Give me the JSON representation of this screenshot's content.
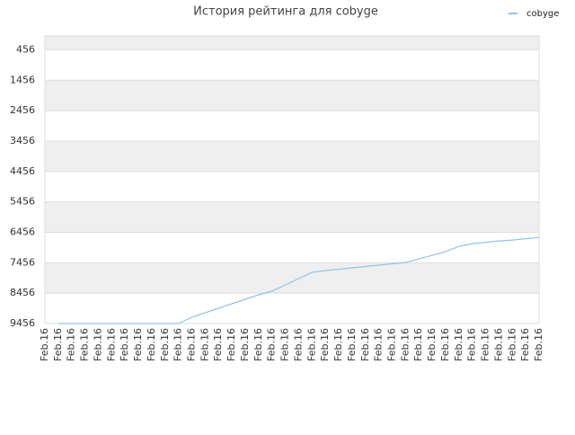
{
  "chart_data": {
    "type": "line",
    "title": "История рейтинга для cobyge",
    "categories": [
      "Feb.16",
      "Feb.16",
      "Feb.16",
      "Feb.16",
      "Feb.16",
      "Feb.16",
      "Feb.16",
      "Feb.16",
      "Feb.16",
      "Feb.16",
      "Feb.16",
      "Feb.16",
      "Feb.16",
      "Feb.16",
      "Feb.16",
      "Feb.16",
      "Feb.16",
      "Feb.16",
      "Feb.16",
      "Feb.16",
      "Feb.16",
      "Feb.16",
      "Feb.16",
      "Feb.16",
      "Feb.16",
      "Feb.16",
      "Feb.16",
      "Feb.16",
      "Feb.16",
      "Feb.16",
      "Feb.16",
      "Feb.16",
      "Feb.16",
      "Feb.16",
      "Feb.16",
      "Feb.16",
      "Feb.16",
      "Feb.16"
    ],
    "series": [
      {
        "name": "cobyge",
        "color": "#8cc4f0",
        "values": [
          null,
          9456,
          9456,
          9456,
          9456,
          9456,
          9456,
          9456,
          9456,
          9456,
          9456,
          9248,
          9100,
          8953,
          8805,
          8658,
          8510,
          8392,
          8186,
          7979,
          7773,
          7714,
          7670,
          7625,
          7581,
          7536,
          7492,
          7448,
          7330,
          7212,
          7094,
          6917,
          6829,
          6784,
          6740,
          6710,
          6666,
          6622
        ]
      }
    ],
    "ylim": [
      9456,
      0
    ],
    "yticks": [
      456,
      1456,
      2456,
      3456,
      4456,
      5456,
      6456,
      7456,
      8456,
      9456
    ],
    "grid": true,
    "legend": "top-right"
  }
}
